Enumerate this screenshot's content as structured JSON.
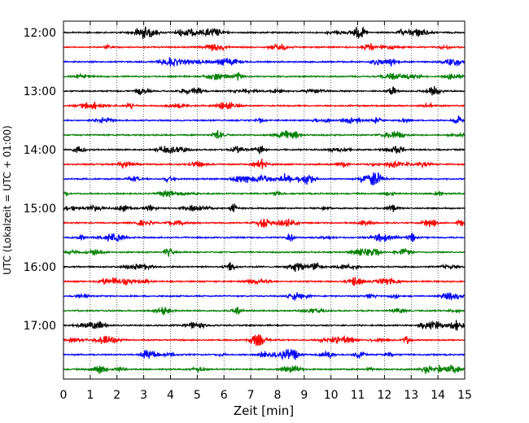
{
  "chart_data": {
    "type": "line",
    "title": "",
    "xlabel": "Zeit  [min]",
    "ylabel": "UTC (Lokalzeit = UTC + 01:00)",
    "xlim": [
      0,
      15
    ],
    "x_ticks": [
      "0",
      "1",
      "2",
      "3",
      "4",
      "5",
      "6",
      "7",
      "8",
      "9",
      "10",
      "11",
      "12",
      "13",
      "14",
      "15"
    ],
    "y_tick_labels": [
      "12:00",
      "13:00",
      "14:00",
      "15:00",
      "16:00",
      "17:00"
    ],
    "grid": "vertical dotted lines at each minute",
    "trace_interval_minutes": 15,
    "trace_count": 24,
    "trace_start_times": [
      "12:00",
      "12:15",
      "12:30",
      "12:45",
      "13:00",
      "13:15",
      "13:30",
      "13:45",
      "14:00",
      "14:15",
      "14:30",
      "14:45",
      "15:00",
      "15:15",
      "15:30",
      "15:45",
      "16:00",
      "16:15",
      "16:30",
      "16:45",
      "17:00",
      "17:15",
      "17:30",
      "17:45"
    ],
    "trace_colors": [
      "#000000",
      "#ff0000",
      "#0000ff",
      "#007f00"
    ]
  }
}
